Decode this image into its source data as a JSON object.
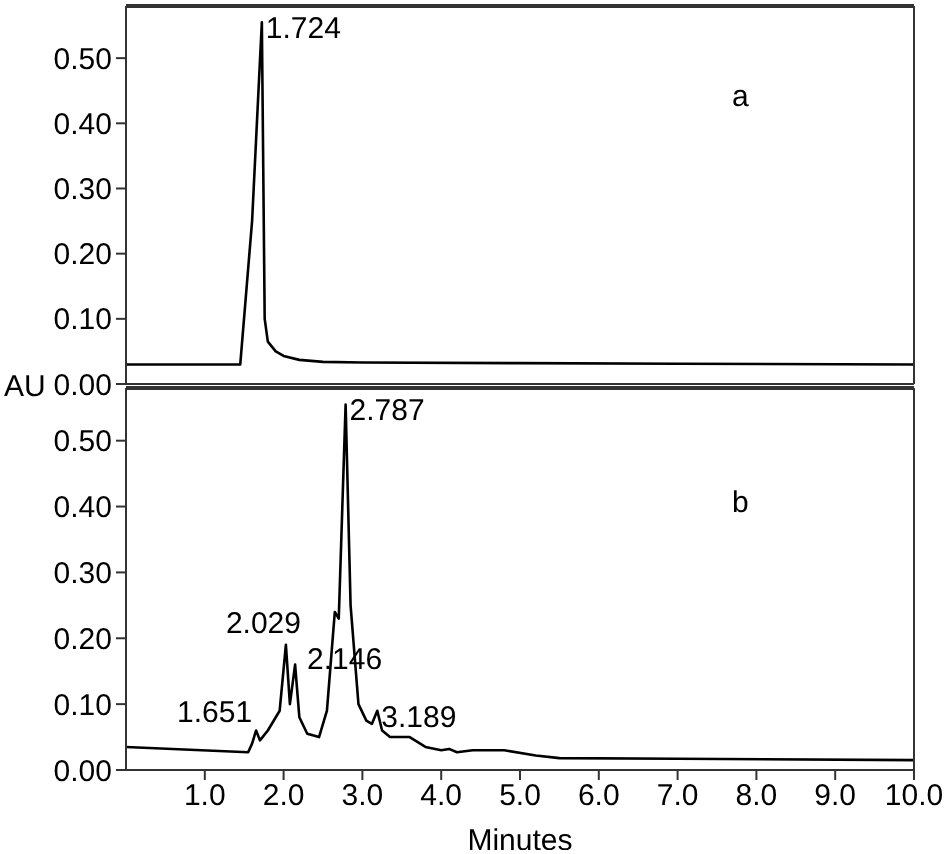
{
  "chart_data": [
    {
      "type": "line",
      "xlim": [
        0,
        10
      ],
      "ylim": [
        0,
        0.58
      ],
      "yticks": [
        {
          "value": 0,
          "label": "0.00"
        },
        {
          "value": 0.1,
          "label": "0.10"
        },
        {
          "value": 0.2,
          "label": "0.20"
        },
        {
          "value": 0.3,
          "label": "0.30"
        },
        {
          "value": 0.4,
          "label": "0.40"
        },
        {
          "value": 0.5,
          "label": "0.50"
        }
      ],
      "tick_labels": "y",
      "marker": "none",
      "line_style": "solid",
      "series": [
        {
          "color": "#000000",
          "x": [
            0,
            1.3,
            1.45,
            1.6,
            1.724,
            1.76,
            1.8,
            1.9,
            2.0,
            2.2,
            2.5,
            3.0,
            5.0,
            7.0,
            10.0
          ],
          "values": [
            0.03,
            0.03,
            0.03,
            0.25,
            0.555,
            0.1,
            0.065,
            0.05,
            0.043,
            0.037,
            0.034,
            0.033,
            0.032,
            0.031,
            0.03
          ]
        }
      ],
      "annotations": [
        {
          "text": "1.724",
          "x": 1.724,
          "y": 0.555
        },
        "a"
      ]
    },
    {
      "type": "line",
      "xlim": [
        0,
        10
      ],
      "ylim": [
        0,
        0.58
      ],
      "xticks": [
        {
          "value": 1,
          "label": "1.0"
        },
        {
          "value": 2,
          "label": "2.0"
        },
        {
          "value": 3,
          "label": "3.0"
        },
        {
          "value": 4,
          "label": "4.0"
        },
        {
          "value": 5,
          "label": "5.0"
        },
        {
          "value": 6,
          "label": "6.0"
        },
        {
          "value": 7,
          "label": "7.0"
        },
        {
          "value": 8,
          "label": "8.0"
        },
        {
          "value": 9,
          "label": "9.0"
        },
        {
          "value": 10,
          "label": "10.0"
        }
      ],
      "yticks": [
        {
          "value": 0,
          "label": "0.00"
        },
        {
          "value": 0.1,
          "label": "0.10"
        },
        {
          "value": 0.2,
          "label": "0.20"
        },
        {
          "value": 0.3,
          "label": "0.30"
        },
        {
          "value": 0.4,
          "label": "0.40"
        },
        {
          "value": 0.5,
          "label": "0.50"
        }
      ],
      "xlabel": "Minutes",
      "ylabel": "AU",
      "marker": "none",
      "line_style": "solid",
      "series": [
        {
          "color": "#000000",
          "x": [
            0,
            1.55,
            1.6,
            1.651,
            1.7,
            1.8,
            1.95,
            2.029,
            2.08,
            2.146,
            2.2,
            2.3,
            2.45,
            2.55,
            2.65,
            2.7,
            2.787,
            2.85,
            2.95,
            3.05,
            3.12,
            3.189,
            3.25,
            3.35,
            3.6,
            3.8,
            4.0,
            4.1,
            4.2,
            4.4,
            4.8,
            5.2,
            5.5,
            7.0,
            10.0
          ],
          "values": [
            0.035,
            0.027,
            0.04,
            0.06,
            0.045,
            0.06,
            0.09,
            0.19,
            0.1,
            0.16,
            0.08,
            0.055,
            0.05,
            0.09,
            0.24,
            0.23,
            0.555,
            0.25,
            0.1,
            0.075,
            0.07,
            0.09,
            0.06,
            0.05,
            0.05,
            0.035,
            0.03,
            0.032,
            0.027,
            0.03,
            0.03,
            0.022,
            0.018,
            0.017,
            0.015
          ]
        }
      ],
      "annotations": [
        {
          "text": "1.651",
          "x": 1.651,
          "y": 0.06
        },
        {
          "text": "2.029",
          "x": 2.029,
          "y": 0.19
        },
        {
          "text": "2.146",
          "x": 2.146,
          "y": 0.16
        },
        {
          "text": "2.787",
          "x": 2.787,
          "y": 0.555
        },
        {
          "text": "3.189",
          "x": 3.189,
          "y": 0.09
        },
        "b"
      ]
    }
  ]
}
